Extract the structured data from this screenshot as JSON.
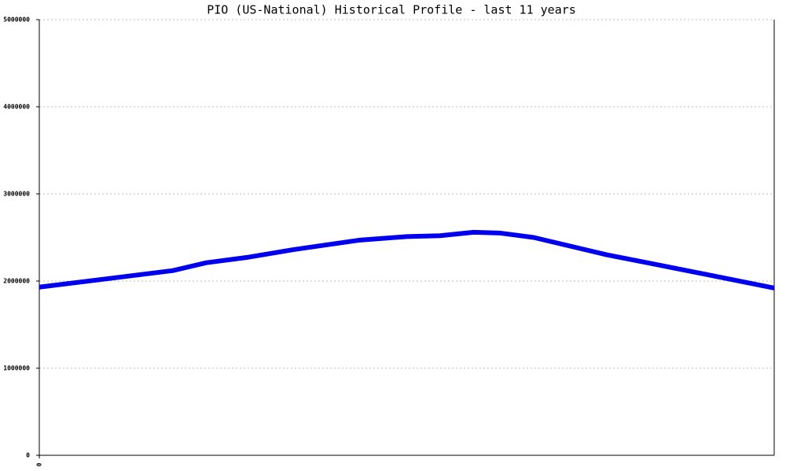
{
  "chart_data": {
    "type": "line",
    "title": "PIO (US-National) Historical Profile - last 11 years",
    "x": [
      0,
      2.0,
      2.5,
      3.1,
      3.8,
      4.8,
      5.5,
      6.0,
      6.5,
      6.9,
      7.4,
      8.5,
      9.1,
      11
    ],
    "series": [
      {
        "name": "PIO",
        "color": "#0000ee",
        "values": [
          1930000,
          2120000,
          2210000,
          2270000,
          2360000,
          2470000,
          2510000,
          2520000,
          2560000,
          2550000,
          2500000,
          2300000,
          2210000,
          1920000
        ]
      }
    ],
    "xlim": [
      0,
      11
    ],
    "xticks": [
      0
    ],
    "ylim": [
      0,
      5000000
    ],
    "yticks": [
      0,
      1000000,
      2000000,
      3000000,
      4000000,
      5000000
    ],
    "grid": true
  }
}
